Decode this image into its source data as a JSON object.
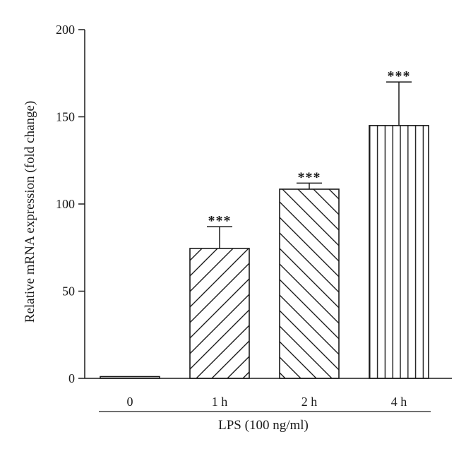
{
  "chart_data": {
    "type": "bar",
    "categories": [
      "0",
      "1 h",
      "2 h",
      "4 h"
    ],
    "values": [
      1,
      74.5,
      108.5,
      145
    ],
    "error_upper": [
      1,
      87,
      112,
      170
    ],
    "significance": [
      "",
      "***",
      "***",
      "***"
    ],
    "patterns": [
      "none",
      "diag-forward",
      "diag-back",
      "vertical"
    ],
    "ylabel": "Relative mRNA expression (fold change)",
    "xlabel": "LPS (100 ng/ml)",
    "ylim": [
      0,
      200
    ],
    "yticks": [
      0,
      50,
      100,
      150,
      200
    ],
    "ytick_labels": [
      "0",
      "50",
      "100",
      "150",
      "200"
    ],
    "grid": false
  }
}
